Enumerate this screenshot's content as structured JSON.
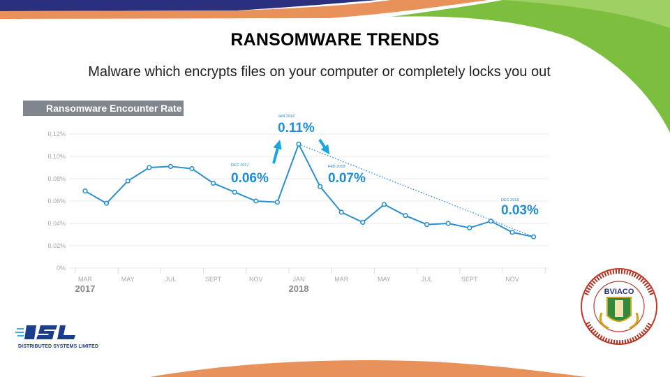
{
  "title": "RANSOMWARE TRENDS",
  "subtitle": "Malware which encrypts files on your computer or completely locks you out",
  "chart_header": "Ransomware Encounter Rate",
  "colors": {
    "line": "#2b8fcf",
    "arrow": "#1aa6e0",
    "callout": "#1f8dd6",
    "header_bg": "#7f868e",
    "axis_text": "#a9a9a9",
    "band_blue": "#2a2f7e",
    "band_orange": "#e8915a",
    "band_green": "#7cbf3f"
  },
  "chart_data": {
    "type": "line",
    "title": "Ransomware Encounter Rate",
    "x_tick_labels": [
      "MAR",
      "MAY",
      "JUL",
      "SEPT",
      "NOV",
      "JAN",
      "MAR",
      "MAY",
      "JUL",
      "SEPT",
      "NOV"
    ],
    "year_labels": [
      "2017",
      "2018"
    ],
    "y_tick_labels": [
      "0%",
      "0.02%",
      "0.04%",
      "0.06%",
      "0.08%",
      "0.10%",
      "0.12%"
    ],
    "ylim": [
      0,
      0.12
    ],
    "y_unit": "%",
    "x": [
      "2017-03",
      "2017-04",
      "2017-05",
      "2017-06",
      "2017-07",
      "2017-08",
      "2017-09",
      "2017-10",
      "2017-11",
      "2017-12",
      "2018-01",
      "2018-02",
      "2018-03",
      "2018-04",
      "2018-05",
      "2018-06",
      "2018-07",
      "2018-08",
      "2018-09",
      "2018-10",
      "2018-11",
      "2018-12"
    ],
    "values": [
      0.069,
      0.058,
      0.078,
      0.09,
      0.091,
      0.089,
      0.076,
      0.068,
      0.06,
      0.059,
      0.111,
      0.073,
      0.05,
      0.041,
      0.057,
      0.047,
      0.039,
      0.04,
      0.036,
      0.042,
      0.032,
      0.028
    ],
    "trend_line": {
      "from": "2018-01",
      "to": "2018-12",
      "style": "dotted"
    },
    "annotations": [
      {
        "small": "DEC 2017",
        "value": "0.06%"
      },
      {
        "small": "JAN 2018",
        "value": "0.11%"
      },
      {
        "small": "FEB 2018",
        "value": "0.07%"
      },
      {
        "small": "DEC 2018",
        "value": "0.03%"
      }
    ],
    "grid": true
  },
  "logos": {
    "bsl_text": "DISTRIBUTED SYSTEMS LIMITED",
    "seal_text": "BVIACO"
  }
}
